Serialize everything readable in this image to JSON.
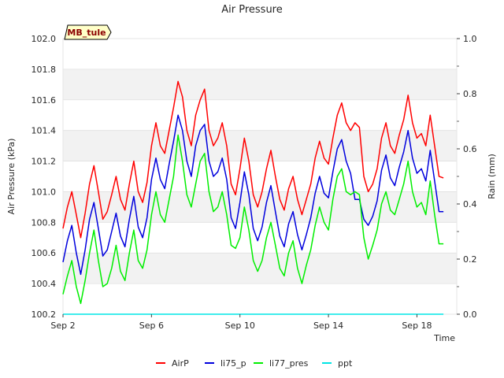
{
  "chart_data": {
    "type": "line",
    "title": "Air Pressure",
    "badge": "MB_tule",
    "xlabel": "Time",
    "ylabel": "Air Pressure (kPa)",
    "y2label": "Rain (mm)",
    "xlim": [
      2.0,
      19.8
    ],
    "ylim": [
      100.2,
      102.0
    ],
    "y2lim": [
      0.0,
      1.0
    ],
    "x_tick_values": [
      2,
      6,
      10,
      14,
      18
    ],
    "x_tick_labels": [
      "Sep 2",
      "Sep 6",
      "Sep 10",
      "Sep 14",
      "Sep 18"
    ],
    "y_ticks": [
      "100.2",
      "100.4",
      "100.6",
      "100.8",
      "101.0",
      "101.2",
      "101.4",
      "101.6",
      "101.8",
      "102.0"
    ],
    "y2_ticks": [
      "0.0",
      "0.2",
      "0.4",
      "0.6",
      "0.8",
      "1.0"
    ],
    "grid": "horizontal alternating bands",
    "legend_position": "bottom-center",
    "series": [
      {
        "name": "AirP",
        "color": "#ff0000",
        "axis": "left",
        "x": [
          2.0,
          2.2,
          2.4,
          2.6,
          2.8,
          3.0,
          3.2,
          3.4,
          3.6,
          3.8,
          4.0,
          4.2,
          4.4,
          4.6,
          4.8,
          5.0,
          5.2,
          5.4,
          5.6,
          5.8,
          6.0,
          6.2,
          6.4,
          6.6,
          6.8,
          7.0,
          7.2,
          7.4,
          7.6,
          7.8,
          8.0,
          8.2,
          8.4,
          8.6,
          8.8,
          9.0,
          9.2,
          9.4,
          9.6,
          9.8,
          10.0,
          10.2,
          10.4,
          10.6,
          10.8,
          11.0,
          11.2,
          11.4,
          11.6,
          11.8,
          12.0,
          12.2,
          12.4,
          12.6,
          12.8,
          13.0,
          13.2,
          13.4,
          13.6,
          13.8,
          14.0,
          14.2,
          14.4,
          14.6,
          14.8,
          15.0,
          15.2,
          15.4,
          15.6,
          15.8,
          16.0,
          16.2,
          16.4,
          16.6,
          16.8,
          17.0,
          17.2,
          17.4,
          17.6,
          17.8,
          18.0,
          18.2,
          18.4,
          18.6,
          18.8,
          19.0,
          19.2
        ],
        "y": [
          100.76,
          100.9,
          101.0,
          100.85,
          100.7,
          100.86,
          101.05,
          101.17,
          101.0,
          100.82,
          100.87,
          100.98,
          101.1,
          100.95,
          100.88,
          101.05,
          101.2,
          101.0,
          100.93,
          101.06,
          101.3,
          101.45,
          101.3,
          101.25,
          101.4,
          101.55,
          101.72,
          101.62,
          101.4,
          101.3,
          101.5,
          101.6,
          101.67,
          101.4,
          101.3,
          101.35,
          101.45,
          101.3,
          101.05,
          100.98,
          101.15,
          101.35,
          101.2,
          100.98,
          100.9,
          101.0,
          101.15,
          101.27,
          101.1,
          100.95,
          100.88,
          101.02,
          101.1,
          100.95,
          100.85,
          100.95,
          101.05,
          101.22,
          101.33,
          101.22,
          101.18,
          101.35,
          101.5,
          101.58,
          101.45,
          101.4,
          101.45,
          101.42,
          101.1,
          101.0,
          101.05,
          101.15,
          101.35,
          101.45,
          101.3,
          101.25,
          101.37,
          101.47,
          101.63,
          101.45,
          101.35,
          101.38,
          101.3,
          101.5,
          101.3,
          101.1,
          101.09
        ]
      },
      {
        "name": "li75_p",
        "color": "#0000dd",
        "axis": "left",
        "x": [
          2.0,
          2.2,
          2.4,
          2.6,
          2.8,
          3.0,
          3.2,
          3.4,
          3.6,
          3.8,
          4.0,
          4.2,
          4.4,
          4.6,
          4.8,
          5.0,
          5.2,
          5.4,
          5.6,
          5.8,
          6.0,
          6.2,
          6.4,
          6.6,
          6.8,
          7.0,
          7.2,
          7.4,
          7.6,
          7.8,
          8.0,
          8.2,
          8.4,
          8.6,
          8.8,
          9.0,
          9.2,
          9.4,
          9.6,
          9.8,
          10.0,
          10.2,
          10.4,
          10.6,
          10.8,
          11.0,
          11.2,
          11.4,
          11.6,
          11.8,
          12.0,
          12.2,
          12.4,
          12.6,
          12.8,
          13.0,
          13.2,
          13.4,
          13.6,
          13.8,
          14.0,
          14.2,
          14.4,
          14.6,
          14.8,
          15.0,
          15.2,
          15.4,
          15.6,
          15.8,
          16.0,
          16.2,
          16.4,
          16.6,
          16.8,
          17.0,
          17.2,
          17.4,
          17.6,
          17.8,
          18.0,
          18.2,
          18.4,
          18.6,
          18.8,
          19.0,
          19.2
        ],
        "y": [
          100.54,
          100.68,
          100.78,
          100.6,
          100.46,
          100.62,
          100.82,
          100.93,
          100.76,
          100.58,
          100.62,
          100.74,
          100.86,
          100.71,
          100.64,
          100.82,
          100.97,
          100.77,
          100.7,
          100.83,
          101.08,
          101.22,
          101.08,
          101.02,
          101.18,
          101.33,
          101.5,
          101.4,
          101.2,
          101.1,
          101.3,
          101.4,
          101.44,
          101.2,
          101.1,
          101.13,
          101.22,
          101.08,
          100.83,
          100.76,
          100.93,
          101.13,
          100.98,
          100.76,
          100.68,
          100.77,
          100.93,
          101.04,
          100.87,
          100.71,
          100.64,
          100.79,
          100.87,
          100.72,
          100.62,
          100.72,
          100.83,
          100.99,
          101.1,
          100.99,
          100.96,
          101.13,
          101.28,
          101.34,
          101.2,
          101.12,
          100.95,
          100.95,
          100.82,
          100.78,
          100.84,
          100.94,
          101.14,
          101.24,
          101.09,
          101.04,
          101.16,
          101.26,
          101.4,
          101.22,
          101.12,
          101.15,
          101.07,
          101.27,
          101.07,
          100.87,
          100.87
        ]
      },
      {
        "name": "li77_pres",
        "color": "#00ee00",
        "axis": "left",
        "x": [
          2.0,
          2.2,
          2.4,
          2.6,
          2.8,
          3.0,
          3.2,
          3.4,
          3.6,
          3.8,
          4.0,
          4.2,
          4.4,
          4.6,
          4.8,
          5.0,
          5.2,
          5.4,
          5.6,
          5.8,
          6.0,
          6.2,
          6.4,
          6.6,
          6.8,
          7.0,
          7.2,
          7.4,
          7.6,
          7.8,
          8.0,
          8.2,
          8.4,
          8.6,
          8.8,
          9.0,
          9.2,
          9.4,
          9.6,
          9.8,
          10.0,
          10.2,
          10.4,
          10.6,
          10.8,
          11.0,
          11.2,
          11.4,
          11.6,
          11.8,
          12.0,
          12.2,
          12.4,
          12.6,
          12.8,
          13.0,
          13.2,
          13.4,
          13.6,
          13.8,
          14.0,
          14.2,
          14.4,
          14.6,
          14.8,
          15.0,
          15.2,
          15.4,
          15.6,
          15.8,
          16.0,
          16.2,
          16.4,
          16.6,
          16.8,
          17.0,
          17.2,
          17.4,
          17.6,
          17.8,
          18.0,
          18.2,
          18.4,
          18.6,
          18.8,
          19.0,
          19.2
        ],
        "y": [
          100.33,
          100.45,
          100.55,
          100.38,
          100.27,
          100.42,
          100.6,
          100.75,
          100.55,
          100.38,
          100.4,
          100.5,
          100.65,
          100.48,
          100.42,
          100.6,
          100.75,
          100.55,
          100.5,
          100.62,
          100.85,
          101.0,
          100.85,
          100.8,
          100.95,
          101.1,
          101.37,
          101.2,
          100.98,
          100.9,
          101.05,
          101.2,
          101.25,
          101.0,
          100.87,
          100.9,
          101.0,
          100.85,
          100.65,
          100.63,
          100.7,
          100.9,
          100.75,
          100.55,
          100.48,
          100.55,
          100.7,
          100.8,
          100.65,
          100.5,
          100.45,
          100.6,
          100.68,
          100.5,
          100.4,
          100.52,
          100.62,
          100.78,
          100.9,
          100.8,
          100.75,
          100.95,
          101.1,
          101.15,
          101.0,
          100.98,
          101.0,
          100.98,
          100.7,
          100.56,
          100.65,
          100.75,
          100.92,
          101.0,
          100.88,
          100.85,
          100.95,
          101.05,
          101.2,
          101.0,
          100.9,
          100.93,
          100.85,
          101.07,
          100.85,
          100.66,
          100.66
        ]
      },
      {
        "name": "ppt",
        "color": "#00e5e5",
        "axis": "right",
        "x": [
          2.0,
          19.2
        ],
        "y": [
          0.0,
          0.0
        ]
      }
    ]
  }
}
